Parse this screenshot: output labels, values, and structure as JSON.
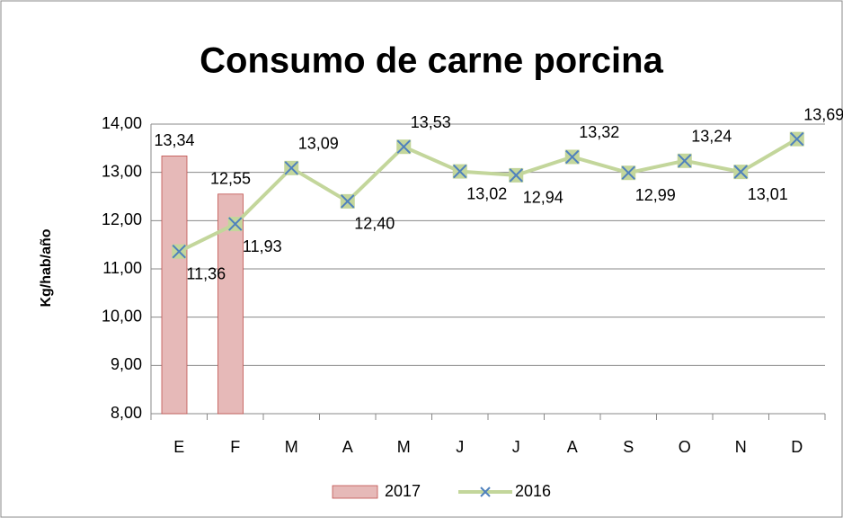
{
  "chart_data": {
    "type": "combo",
    "title": "Consumo de carne porcina",
    "y_label": "Kg/hab/año",
    "categories": [
      "E",
      "F",
      "M",
      "A",
      "M",
      "J",
      "J",
      "A",
      "S",
      "O",
      "N",
      "D"
    ],
    "series": [
      {
        "name": "2017",
        "type": "bar",
        "color": "#e6b9b8",
        "values": [
          13.34,
          12.55,
          null,
          null,
          null,
          null,
          null,
          null,
          null,
          null,
          null,
          null
        ],
        "value_labels": [
          "13,34",
          "12,55",
          null,
          null,
          null,
          null,
          null,
          null,
          null,
          null,
          null,
          null
        ]
      },
      {
        "name": "2016",
        "type": "line",
        "color": "#c3d69b",
        "values": [
          11.36,
          11.93,
          13.09,
          12.4,
          13.53,
          13.02,
          12.94,
          13.32,
          12.99,
          13.24,
          13.01,
          13.69
        ],
        "value_labels": [
          "11,36",
          "11,93",
          "13,09",
          "12,40",
          "13,53",
          "13,02",
          "12,94",
          "13,32",
          "12,99",
          "13,24",
          "13,01",
          "13,69"
        ]
      }
    ],
    "ylim": [
      8,
      14
    ],
    "yticks": [
      {
        "value": 8,
        "label": "8,00"
      },
      {
        "value": 9,
        "label": "9,00"
      },
      {
        "value": 10,
        "label": "10,00"
      },
      {
        "value": 11,
        "label": "11,00"
      },
      {
        "value": 12,
        "label": "12,00"
      },
      {
        "value": 13,
        "label": "13,00"
      },
      {
        "value": 14,
        "label": "14,00"
      }
    ],
    "grid": true,
    "legend": "bottom"
  }
}
